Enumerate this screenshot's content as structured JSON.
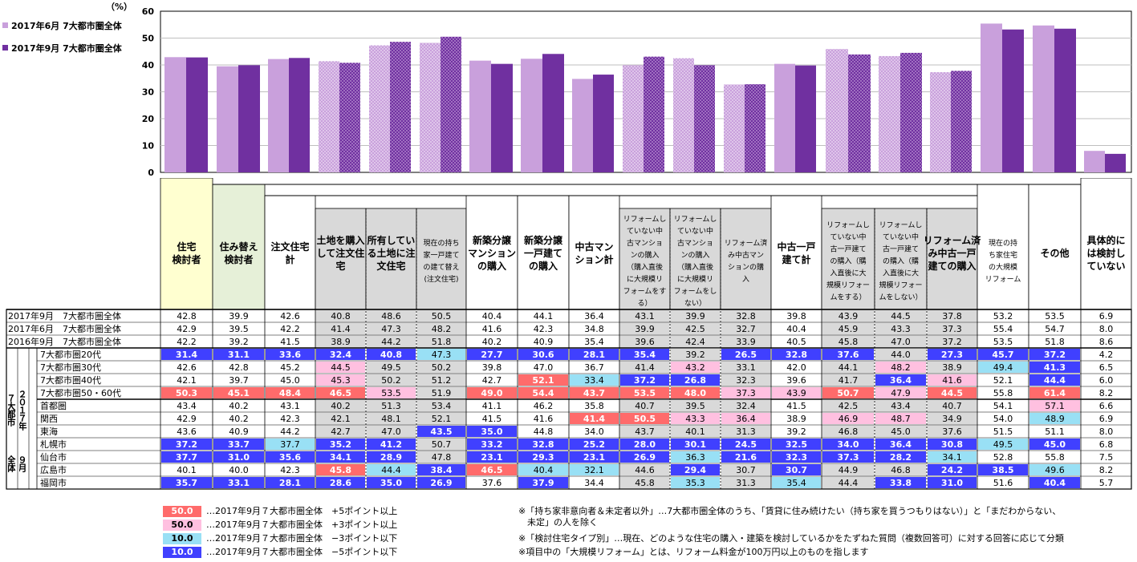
{
  "chart_data": {
    "type": "bar",
    "title": "",
    "ylabel": "（%）",
    "ylim": [
      0,
      60
    ],
    "yticks": [
      0,
      10,
      20,
      30,
      40,
      50,
      60
    ],
    "grid": true,
    "legend_position": "top-left",
    "categories": [
      "住宅検討者",
      "住み替え検討者",
      "注文住宅計",
      "土地を購入して注文住宅",
      "所有している土地に注文住宅",
      "現在の持ち家一戸建ての建て替え(注文住宅)",
      "新築分譲マンションの購入",
      "新築分譲一戸建ての購入",
      "中古マンション計",
      "リフォームしていない中古マンションの購入",
      "リフォームしていない中古マンションの購入(しない)",
      "リフォーム済み中古マンションの購入",
      "中古一戸建て計",
      "リフォームしていない中古一戸建ての購入",
      "リフォームしていない中古一戸建ての購入(しない)",
      "リフォーム済み中古一戸建ての購入",
      "現在の持ち家住宅の大規模リフォーム",
      "その他",
      "具体的には検討していない"
    ],
    "series": [
      {
        "name": "2017年6月 7大都市圏全体",
        "color": "#c9a0dc",
        "values": [
          42.9,
          39.5,
          42.2,
          41.4,
          47.3,
          48.2,
          41.6,
          42.3,
          34.8,
          39.9,
          42.5,
          32.7,
          40.4,
          45.9,
          43.3,
          37.3,
          55.4,
          54.7,
          8.0
        ]
      },
      {
        "name": "2017年9月 7大都市圏全体",
        "color": "#7030a0",
        "values": [
          42.8,
          39.9,
          42.6,
          40.8,
          48.6,
          50.5,
          40.4,
          44.1,
          36.4,
          43.1,
          39.9,
          32.8,
          39.8,
          43.9,
          44.5,
          37.8,
          53.2,
          53.5,
          6.9
        ]
      }
    ],
    "patterned": [
      false,
      false,
      false,
      true,
      true,
      true,
      false,
      false,
      false,
      true,
      true,
      true,
      false,
      true,
      true,
      true,
      false,
      false,
      false
    ]
  },
  "table": {
    "headers": [
      "住宅\n検討者",
      "住み替え\n検討者",
      "注文住宅\n計",
      "土地を購入\nして注文住\n宅",
      "所有してい\nる土地に注\n文住宅",
      "現在の持ち\n家一戸建て\nの建て替え\n(注文住宅)",
      "新築分譲\nマンション\nの購入",
      "新築分譲\n一戸建て\nの購入",
      "中古マン\nション計",
      "リフォームし\nていない中\n古マンショ\nンの購入\n（購入直後\nに大規模リ\nフォームをす\nる）",
      "リフォームし\nていない中\n古マンショ\nンの購入\n（購入直後\nに大規模リ\nフォームをし\nない）",
      "リフォーム済\nみ中古マン\nションの購\n入",
      "中古一戸\n建て計",
      "リフォームし\nていない中\n古一戸建て\nの購入（購\n入直後に大\n規模リフォー\nムをする）",
      "リフォームし\nていない中\n古一戸建て\nの購入（購\n入直後に大\n規模リフォー\nムをしない）",
      "リフォーム済\nみ中古一戸\n建ての購入",
      "現在の持\nち家住宅\nの大規模\nリフォーム",
      "その他",
      "具体的に\nは検討し\nていない"
    ],
    "group_side_label_1": "７大都市",
    "group_side_label_2": "２０１７年",
    "group_side_label_3": "全体",
    "group_side_label_4": "９月",
    "rows": [
      {
        "label": "2017年9月　7大都市圏全体",
        "values": [
          "42.8",
          "39.9",
          "42.6",
          "40.8",
          "48.6",
          "50.5",
          "40.4",
          "44.1",
          "36.4",
          "43.1",
          "39.9",
          "32.8",
          "39.8",
          "43.9",
          "44.5",
          "37.8",
          "53.2",
          "53.5",
          "6.9"
        ]
      },
      {
        "label": "2017年6月　7大都市圏全体",
        "values": [
          "42.9",
          "39.5",
          "42.2",
          "41.4",
          "47.3",
          "48.2",
          "41.6",
          "42.3",
          "34.8",
          "39.9",
          "42.5",
          "32.7",
          "40.4",
          "45.9",
          "43.3",
          "37.3",
          "55.4",
          "54.7",
          "8.0"
        ]
      },
      {
        "label": "2016年9月　7大都市圏全体",
        "values": [
          "42.2",
          "39.2",
          "41.5",
          "38.9",
          "44.2",
          "51.8",
          "40.2",
          "40.9",
          "35.4",
          "39.6",
          "42.4",
          "33.9",
          "40.5",
          "45.8",
          "47.0",
          "37.2",
          "53.5",
          "51.8",
          "8.6"
        ]
      },
      {
        "label": "7大都市圏20代",
        "values": [
          "31.4",
          "31.1",
          "33.6",
          "32.4",
          "40.8",
          "47.3",
          "27.7",
          "30.6",
          "28.1",
          "35.4",
          "39.2",
          "26.5",
          "32.8",
          "37.6",
          "44.0",
          "27.3",
          "45.7",
          "37.2",
          "4.2"
        ]
      },
      {
        "label": "7大都市圏30代",
        "values": [
          "42.6",
          "42.8",
          "45.2",
          "44.5",
          "49.5",
          "50.2",
          "39.8",
          "47.0",
          "36.7",
          "41.4",
          "43.2",
          "33.1",
          "42.0",
          "44.1",
          "48.2",
          "38.9",
          "49.4",
          "41.3",
          "6.5"
        ]
      },
      {
        "label": "7大都市圏40代",
        "values": [
          "42.1",
          "39.7",
          "45.0",
          "45.3",
          "50.2",
          "51.2",
          "42.7",
          "52.1",
          "33.4",
          "37.2",
          "26.8",
          "32.3",
          "39.6",
          "41.7",
          "36.4",
          "41.6",
          "52.1",
          "44.4",
          "6.0"
        ]
      },
      {
        "label": "7大都市圏50・60代",
        "values": [
          "50.3",
          "45.1",
          "48.4",
          "46.5",
          "53.5",
          "51.9",
          "49.0",
          "54.4",
          "43.7",
          "53.5",
          "48.0",
          "37.3",
          "43.9",
          "50.7",
          "47.9",
          "44.5",
          "55.8",
          "61.4",
          "8.2"
        ]
      },
      {
        "label": "首都圏",
        "values": [
          "43.4",
          "40.2",
          "43.1",
          "40.2",
          "51.3",
          "53.4",
          "41.1",
          "46.2",
          "35.8",
          "40.7",
          "39.5",
          "32.4",
          "41.5",
          "42.5",
          "43.4",
          "40.7",
          "54.1",
          "57.1",
          "6.6"
        ]
      },
      {
        "label": "関西",
        "values": [
          "42.9",
          "40.2",
          "42.3",
          "42.1",
          "48.1",
          "52.1",
          "41.5",
          "41.6",
          "41.4",
          "50.5",
          "43.3",
          "36.4",
          "38.9",
          "46.9",
          "48.7",
          "34.9",
          "54.0",
          "48.9",
          "6.9"
        ]
      },
      {
        "label": "東海",
        "values": [
          "43.6",
          "40.9",
          "44.2",
          "42.7",
          "47.0",
          "43.5",
          "35.0",
          "44.8",
          "34.0",
          "43.7",
          "40.1",
          "31.3",
          "39.2",
          "46.8",
          "45.0",
          "37.6",
          "51.5",
          "51.1",
          "8.0"
        ]
      },
      {
        "label": "札幌市",
        "values": [
          "37.2",
          "33.7",
          "37.7",
          "35.2",
          "41.2",
          "50.7",
          "33.2",
          "32.8",
          "25.2",
          "28.0",
          "30.1",
          "24.5",
          "32.5",
          "34.0",
          "36.4",
          "30.8",
          "49.5",
          "45.0",
          "6.8"
        ]
      },
      {
        "label": "仙台市",
        "values": [
          "37.7",
          "31.0",
          "35.6",
          "34.1",
          "28.9",
          "47.8",
          "23.1",
          "29.3",
          "23.1",
          "26.9",
          "36.3",
          "21.6",
          "32.3",
          "37.3",
          "28.2",
          "34.1",
          "52.8",
          "55.8",
          "7.5"
        ]
      },
      {
        "label": "広島市",
        "values": [
          "40.1",
          "40.0",
          "42.3",
          "45.8",
          "44.4",
          "38.4",
          "46.5",
          "40.4",
          "32.1",
          "44.6",
          "29.4",
          "30.7",
          "30.7",
          "44.9",
          "46.8",
          "24.2",
          "38.5",
          "49.6",
          "8.2"
        ]
      },
      {
        "label": "福岡市",
        "values": [
          "35.7",
          "33.1",
          "28.1",
          "28.6",
          "35.0",
          "26.9",
          "37.6",
          "37.9",
          "34.4",
          "45.8",
          "35.3",
          "31.3",
          "35.4",
          "44.4",
          "33.8",
          "31.0",
          "51.6",
          "40.4",
          "5.7"
        ]
      }
    ]
  },
  "colors": {
    "plus5": "#ff6b6b",
    "plus3": "#ffc0e0",
    "minus3": "#99e0f5",
    "minus5": "#4040ff",
    "total_col": "#ffffd0",
    "rehome_col": "#e6f0d8",
    "sub_col": "#d9d9d9"
  },
  "legend_key": [
    {
      "swatch": "50.0",
      "color": "#ff6b6b",
      "text": "…2017年9月７大都市圏全体　+5ポイント以上",
      "text_color": "#fff"
    },
    {
      "swatch": "50.0",
      "color": "#ffc0e0",
      "text": "…2017年9月７大都市圏全体　+3ポイント以上",
      "text_color": "#000"
    },
    {
      "swatch": "10.0",
      "color": "#99e0f5",
      "text": "…2017年9月７大都市圏全体　−3ポイント以下",
      "text_color": "#000"
    },
    {
      "swatch": "10.0",
      "color": "#4040ff",
      "text": "…2017年9月７大都市圏全体　−5ポイント以下",
      "text_color": "#fff"
    }
  ],
  "notes": [
    "※「持ち家非意向者＆未定者以外」…7大都市圏全体のうち、「賃貸に住み続けたい（持ち家を買うつもりはない）」と「まだわからない、",
    "　未定」の人を除く",
    "※「検討住宅タイプ別」…現在、どのような住宅の購入・建築を検討しているかをたずねた質問（複数回答可）に対する回答に応じて分類",
    "※項目中の「大規模リフォーム」とは、リフォーム料金が100万円以上のものを指します"
  ]
}
